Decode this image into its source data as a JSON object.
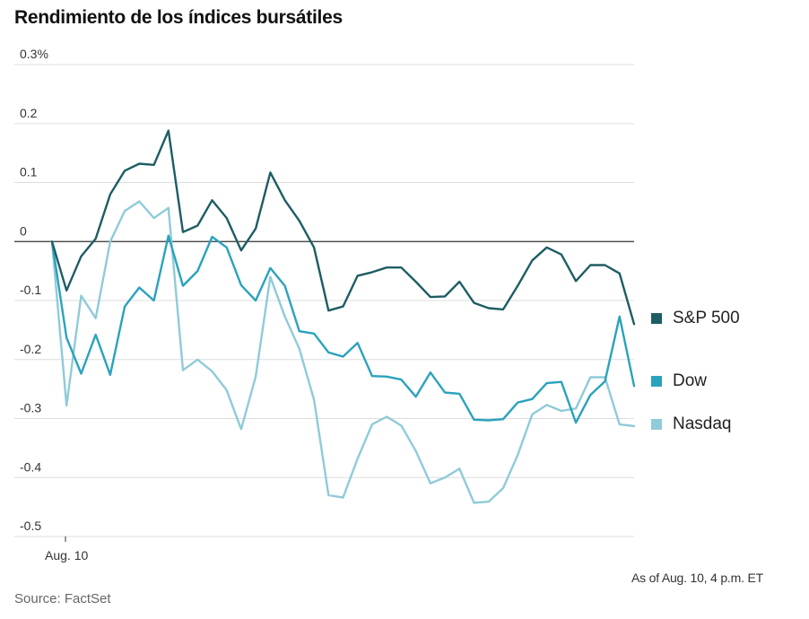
{
  "title": "Rendimiento de los índices bursátiles",
  "note": "As of Aug. 10, 4 p.m. ET",
  "source": "Source: FactSet",
  "colors": {
    "sp500": "#1d5d63",
    "dow": "#2aa2bd",
    "nasdaq": "#8fcbd8",
    "grid": "#dddddd",
    "zero": "#333333"
  },
  "chart_data": {
    "type": "line",
    "title": "Rendimiento de los índices bursátiles",
    "xlabel": "",
    "ylabel": "",
    "x_tick_labels": [
      "Aug. 10"
    ],
    "y_ticks": [
      0.3,
      0.2,
      0.1,
      0,
      -0.1,
      -0.2,
      -0.3,
      -0.4,
      -0.5
    ],
    "y_tick_labels": [
      "0.3%",
      "0.2",
      "0.1",
      "0",
      "-0.1",
      "-0.2",
      "-0.3",
      "-0.4",
      "-0.5"
    ],
    "ylim": [
      -0.5,
      0.3
    ],
    "grid": true,
    "legend_position": "right",
    "series": [
      {
        "name": "S&P 500",
        "key": "sp500",
        "values": [
          0.0,
          -0.083,
          -0.025,
          0.005,
          0.08,
          0.12,
          0.132,
          0.13,
          0.188,
          0.016,
          0.027,
          0.07,
          0.04,
          -0.015,
          0.022,
          0.117,
          0.07,
          0.035,
          -0.01,
          -0.117,
          -0.11,
          -0.058,
          -0.052,
          -0.044,
          -0.044,
          -0.068,
          -0.094,
          -0.093,
          -0.068,
          -0.104,
          -0.113,
          -0.115,
          -0.075,
          -0.032,
          -0.01,
          -0.022,
          -0.067,
          -0.04,
          -0.04,
          -0.054,
          -0.14
        ]
      },
      {
        "name": "Dow",
        "key": "dow",
        "values": [
          0.0,
          -0.163,
          -0.224,
          -0.158,
          -0.226,
          -0.11,
          -0.078,
          -0.1,
          0.01,
          -0.075,
          -0.05,
          0.008,
          -0.01,
          -0.074,
          -0.1,
          -0.045,
          -0.075,
          -0.152,
          -0.156,
          -0.188,
          -0.195,
          -0.172,
          -0.228,
          -0.229,
          -0.234,
          -0.263,
          -0.222,
          -0.256,
          -0.258,
          -0.302,
          -0.303,
          -0.301,
          -0.273,
          -0.267,
          -0.24,
          -0.238,
          -0.307,
          -0.26,
          -0.237,
          -0.127,
          -0.245
        ]
      },
      {
        "name": "Nasdaq",
        "key": "nasdaq",
        "values": [
          0.0,
          -0.278,
          -0.092,
          -0.13,
          0.0,
          0.052,
          0.068,
          0.04,
          0.057,
          -0.218,
          -0.2,
          -0.22,
          -0.252,
          -0.318,
          -0.229,
          -0.06,
          -0.127,
          -0.182,
          -0.268,
          -0.43,
          -0.434,
          -0.368,
          -0.31,
          -0.297,
          -0.312,
          -0.355,
          -0.41,
          -0.4,
          -0.385,
          -0.443,
          -0.441,
          -0.418,
          -0.362,
          -0.293,
          -0.277,
          -0.287,
          -0.283,
          -0.23,
          -0.23,
          -0.31,
          -0.313
        ]
      }
    ]
  }
}
